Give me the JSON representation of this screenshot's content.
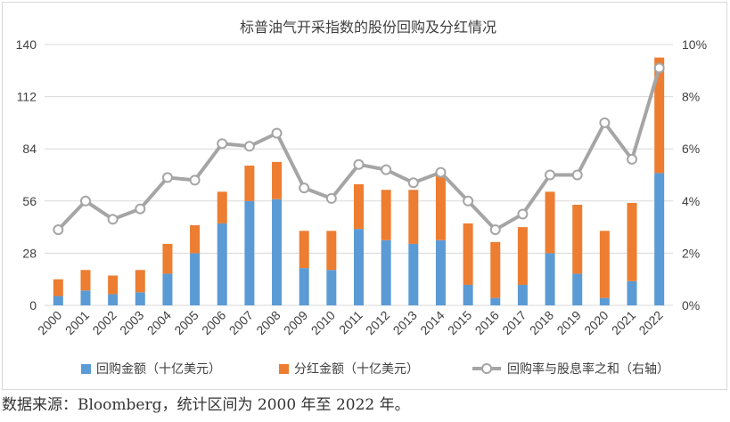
{
  "chart_data": {
    "type": "bar",
    "stacked": true,
    "title": "标普油气开采指数的股份回购及分红情况",
    "categories": [
      "2000",
      "2001",
      "2002",
      "2003",
      "2004",
      "2005",
      "2006",
      "2007",
      "2008",
      "2009",
      "2010",
      "2011",
      "2012",
      "2013",
      "2014",
      "2015",
      "2016",
      "2017",
      "2018",
      "2019",
      "2020",
      "2021",
      "2022"
    ],
    "series": [
      {
        "name": "回购金额（十亿美元）",
        "axis": "left",
        "color": "#5b9bd5",
        "values": [
          5,
          8,
          6,
          7,
          17,
          28,
          44,
          56,
          57,
          20,
          19,
          41,
          35,
          33,
          35,
          11,
          4,
          11,
          28,
          17,
          4,
          13,
          71
        ]
      },
      {
        "name": "分红金额（十亿美元）",
        "axis": "left",
        "color": "#ed7d31",
        "values": [
          9,
          11,
          10,
          12,
          16,
          15,
          17,
          19,
          20,
          20,
          21,
          24,
          27,
          29,
          35,
          33,
          30,
          31,
          33,
          37,
          36,
          42,
          62
        ]
      },
      {
        "name": "回购率与股息率之和（右轴）",
        "axis": "right",
        "type": "line",
        "color": "#a5a5a5",
        "values": [
          2.9,
          4.0,
          3.3,
          3.7,
          4.9,
          4.8,
          6.2,
          6.1,
          6.6,
          4.5,
          4.1,
          5.4,
          5.2,
          4.7,
          5.1,
          4.0,
          2.9,
          3.5,
          5.0,
          5.0,
          7.0,
          5.6,
          9.1
        ]
      }
    ],
    "y_left": {
      "min": 0,
      "max": 140,
      "ticks": [
        "0",
        "28",
        "56",
        "84",
        "112",
        "140"
      ]
    },
    "y_right": {
      "min": 0,
      "max": 10,
      "ticks": [
        "0%",
        "2%",
        "4%",
        "6%",
        "8%",
        "10%"
      ]
    },
    "grid": true,
    "legend_position": "bottom",
    "colors": {
      "buyback": "#5b9bd5",
      "dividend": "#ed7d31",
      "ratio": "#a5a5a5",
      "grid": "#d9d9d9"
    }
  },
  "source_note": "数据来源：Bloomberg，统计区间为 2000 年至 2022 年。"
}
